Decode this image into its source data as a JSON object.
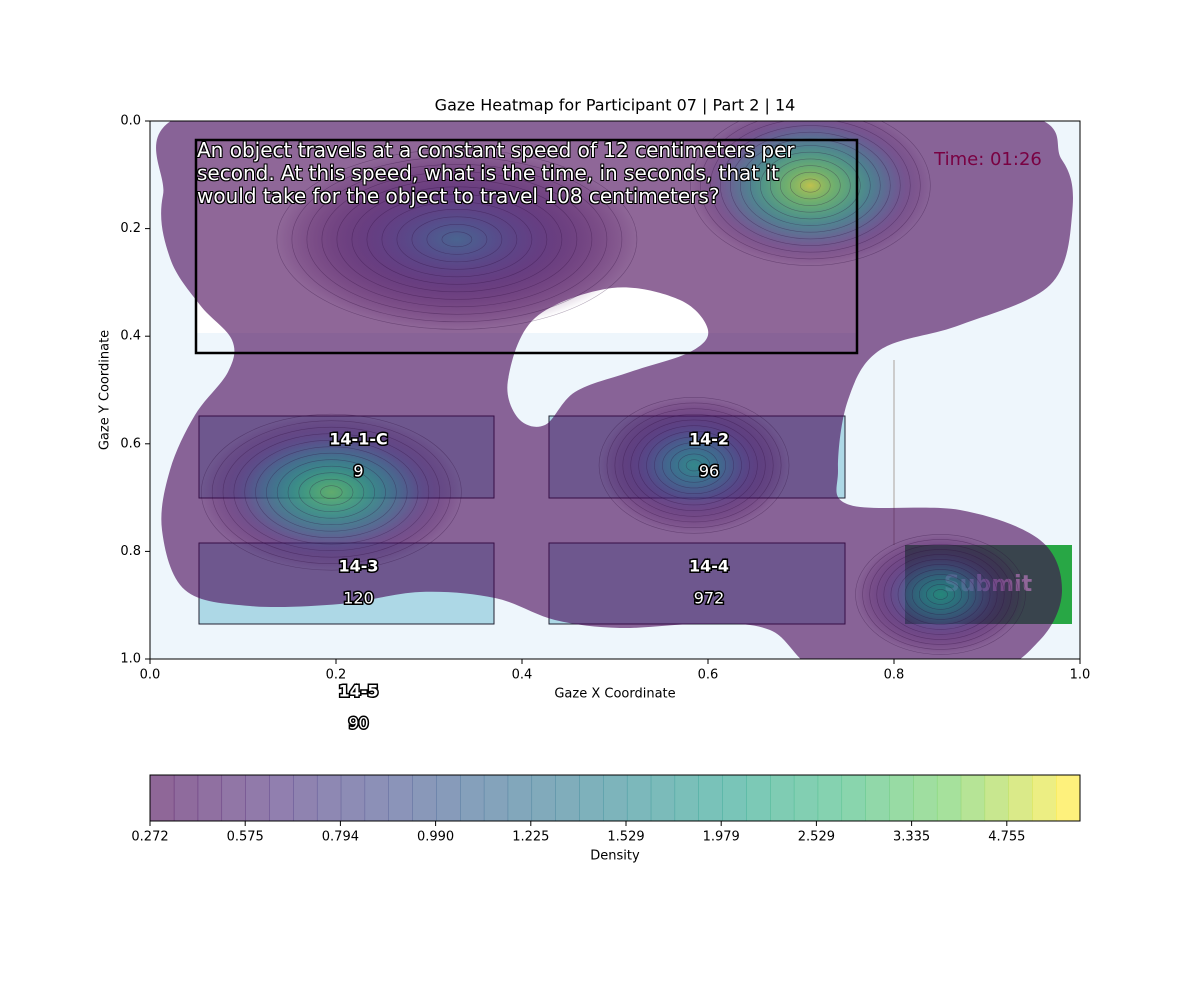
{
  "chart_data": {
    "type": "heatmap",
    "title": "Gaze Heatmap for Participant 07 | Part 2 | 14",
    "xlabel": "Gaze X Coordinate",
    "ylabel": "Gaze Y Coordinate",
    "xlim": [
      0,
      1
    ],
    "ylim": [
      1,
      0
    ],
    "xticks": [
      {
        "value": 0,
        "label": "0.0"
      },
      0.2,
      0.4,
      0.6,
      0.8,
      {
        "value": 1,
        "label": "1.0"
      }
    ],
    "yticks": [
      {
        "value": 0,
        "label": "0.0"
      },
      0.2,
      0.4,
      0.6,
      0.8,
      {
        "value": 1,
        "label": "1.0"
      }
    ],
    "peaks": {
      "x": [
        0.71,
        0.195,
        0.585,
        0.85,
        0.33
      ],
      "y": [
        0.12,
        0.69,
        0.64,
        0.88,
        0.22
      ],
      "values": [
        5.3,
        3.6,
        1.9,
        2.0,
        1.1
      ]
    },
    "colorbar": {
      "label": "Density",
      "ticks": [
        0.272,
        0.575,
        0.794,
        {
          "value": 0.99,
          "label": "0.990"
        },
        1.225,
        1.529,
        1.979,
        2.529,
        3.335,
        4.755
      ]
    }
  },
  "ui": {
    "question": "An object travels at a constant speed of 12 centimeters per second. At this speed, what is the time, in seconds, that it would take for the object to travel 108 centimeters?",
    "time": "Time: 01:26",
    "submit": "Submit",
    "options": [
      {
        "id": "14-1-C",
        "answer": "9"
      },
      {
        "id": "14-2",
        "answer": "96"
      },
      {
        "id": "14-3",
        "answer": "120"
      },
      {
        "id": "14-4",
        "answer": "972"
      },
      {
        "id": "14-5",
        "answer": "90"
      }
    ]
  }
}
